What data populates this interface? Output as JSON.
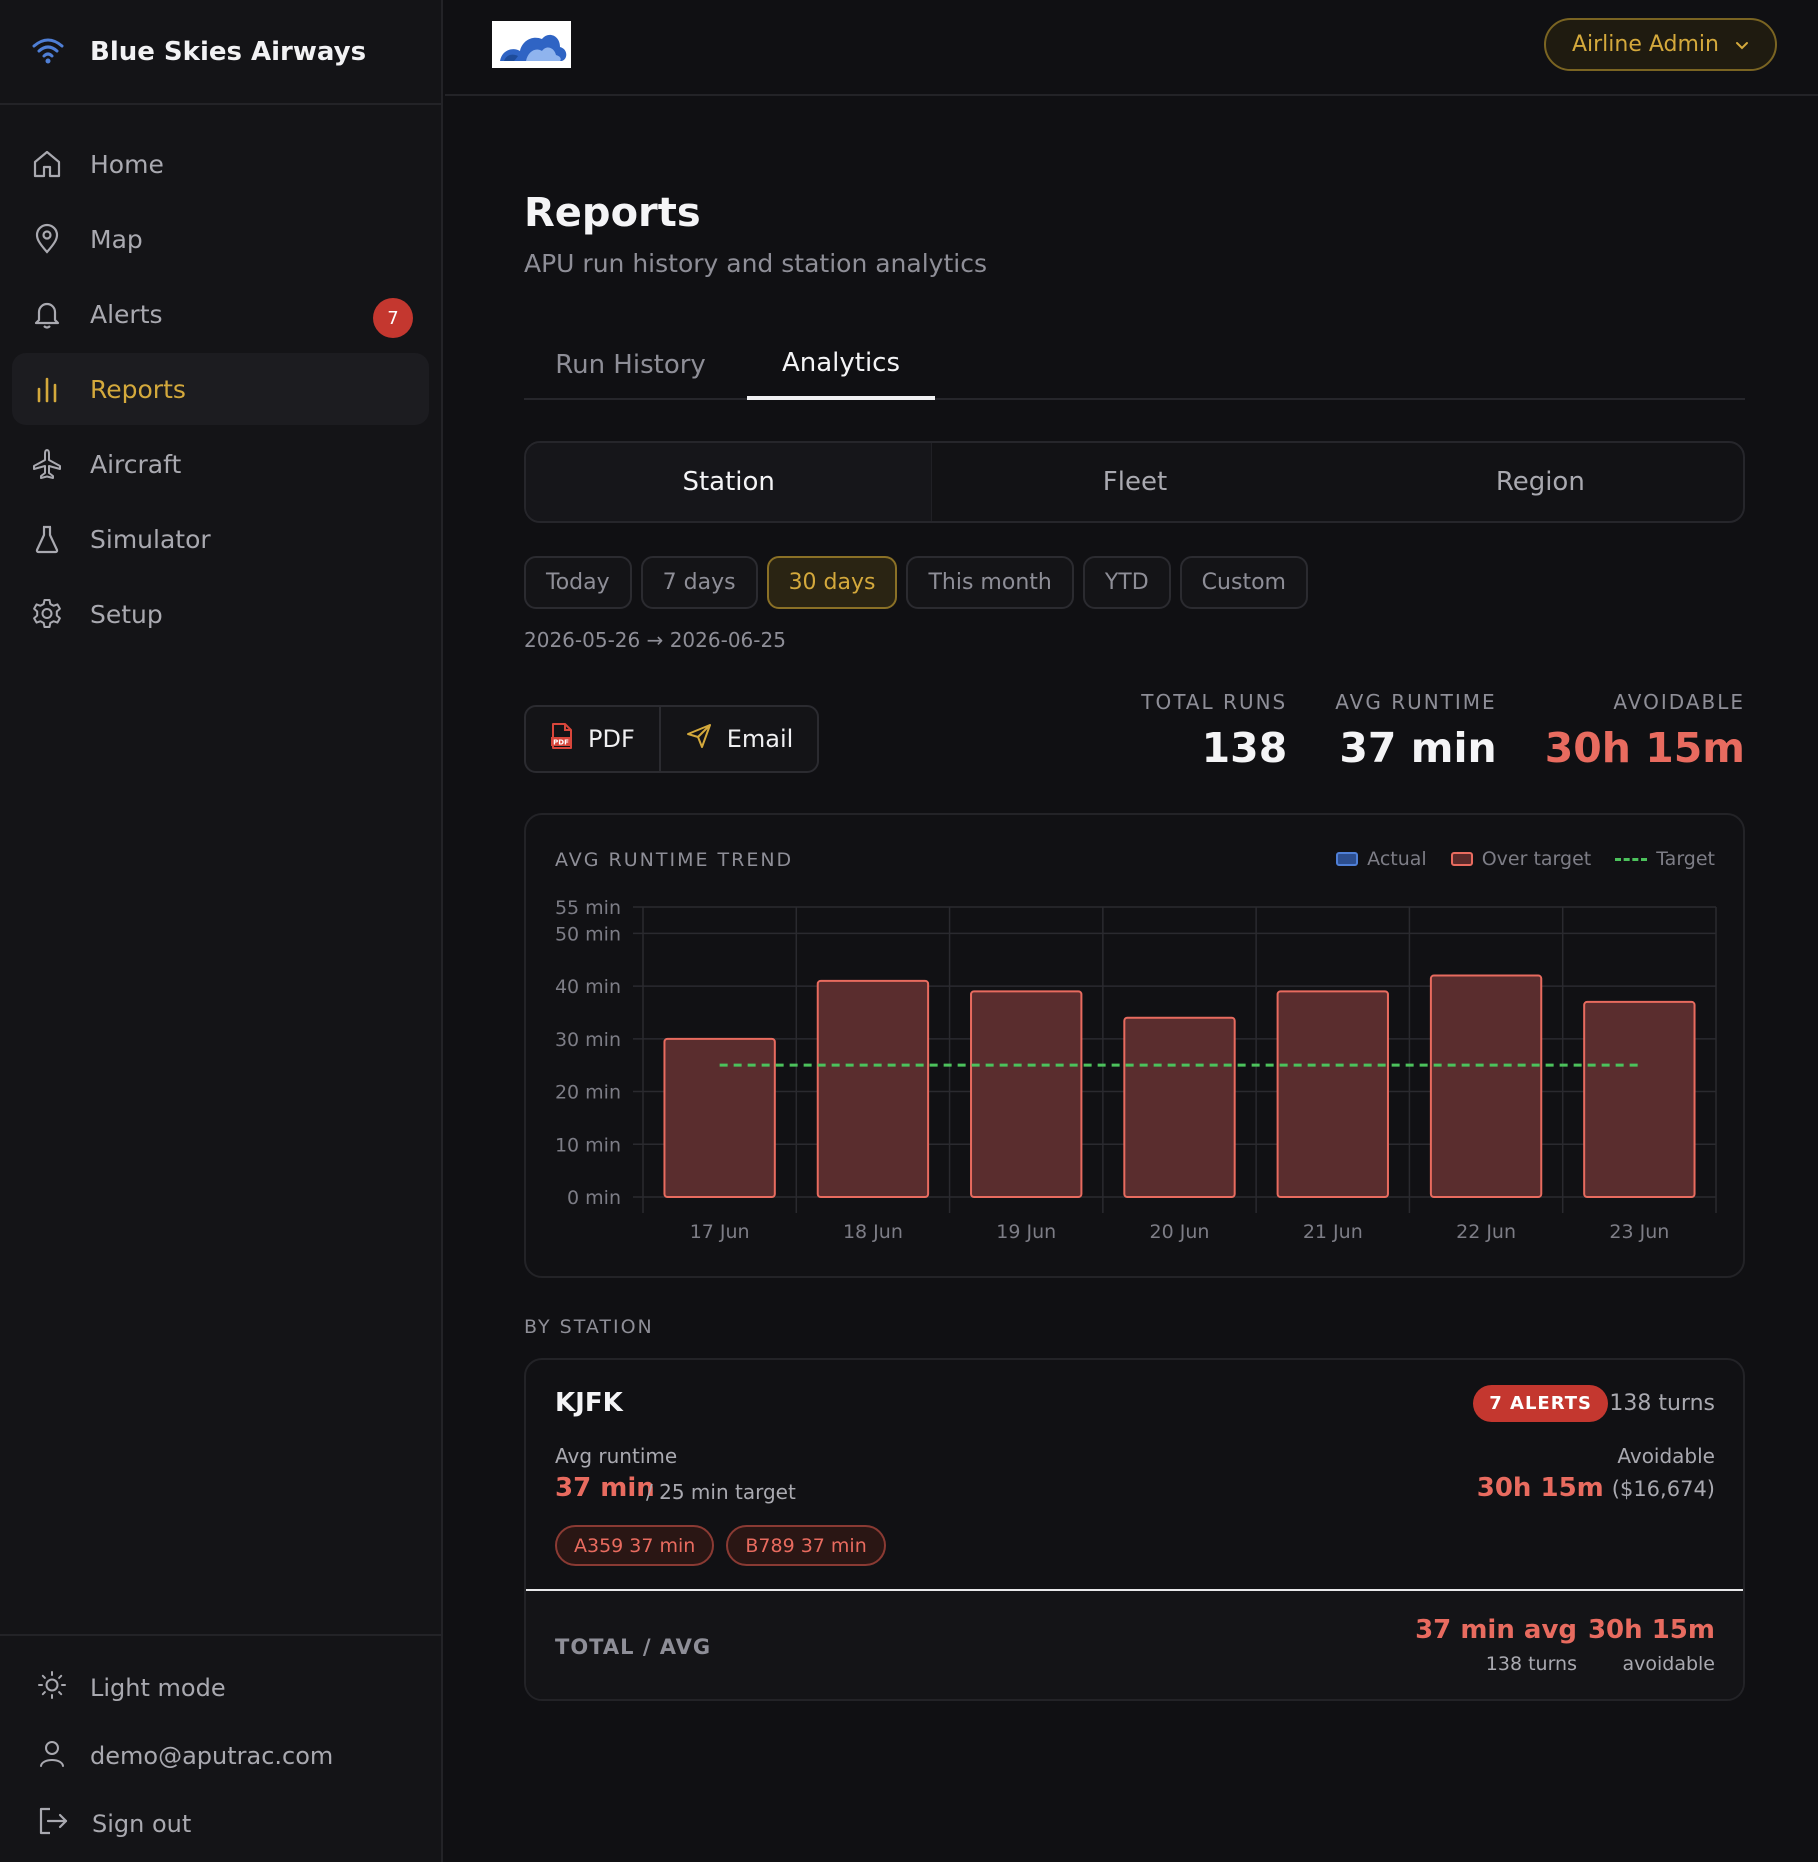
{
  "app": {
    "name": "Blue Skies Airways"
  },
  "sidebar": {
    "items": [
      {
        "label": "Home",
        "icon": "home-icon"
      },
      {
        "label": "Map",
        "icon": "map-pin-icon"
      },
      {
        "label": "Alerts",
        "icon": "bell-icon",
        "badge": "7"
      },
      {
        "label": "Reports",
        "icon": "bar-chart-icon",
        "active": true
      },
      {
        "label": "Aircraft",
        "icon": "plane-icon"
      },
      {
        "label": "Simulator",
        "icon": "flask-icon"
      },
      {
        "label": "Setup",
        "icon": "gear-icon"
      }
    ],
    "bottom": {
      "theme_label": "Light mode",
      "user_email": "demo@aputrac.com",
      "sign_out_label": "Sign out"
    }
  },
  "header": {
    "role_label": "Airline Admin"
  },
  "page": {
    "title": "Reports",
    "subtitle": "APU run history and station analytics"
  },
  "tabs": [
    {
      "label": "Run History",
      "active": false
    },
    {
      "label": "Analytics",
      "active": true
    }
  ],
  "segments": [
    {
      "label": "Station",
      "active": true
    },
    {
      "label": "Fleet",
      "active": false
    },
    {
      "label": "Region",
      "active": false
    }
  ],
  "ranges": [
    {
      "label": "Today",
      "active": false
    },
    {
      "label": "7 days",
      "active": false
    },
    {
      "label": "30 days",
      "active": true
    },
    {
      "label": "This month",
      "active": false
    },
    {
      "label": "YTD",
      "active": false
    },
    {
      "label": "Custom",
      "active": false
    }
  ],
  "date_range": "2026-05-26 → 2026-06-25",
  "export": {
    "pdf_label": "PDF",
    "email_label": "Email"
  },
  "kpis": {
    "total_runs_label": "TOTAL RUNS",
    "total_runs_value": "138",
    "avg_runtime_label": "AVG RUNTIME",
    "avg_runtime_value": "37 min",
    "avoidable_label": "AVOIDABLE",
    "avoidable_value": "30h 15m"
  },
  "chart_data": {
    "type": "bar",
    "title": "AVG RUNTIME TREND",
    "categories": [
      "17 Jun",
      "18 Jun",
      "19 Jun",
      "20 Jun",
      "21 Jun",
      "22 Jun",
      "23 Jun"
    ],
    "series": [
      {
        "name": "Actual",
        "values": [
          30,
          41,
          39,
          34,
          39,
          42,
          37
        ],
        "color": "#4f7fd6"
      },
      {
        "name": "Over target",
        "color": "#e86b5f"
      }
    ],
    "target": {
      "name": "Target",
      "value": 25,
      "color": "#4cc25c"
    },
    "y_ticks": [
      0,
      10,
      20,
      30,
      40,
      50,
      55
    ],
    "y_tick_labels": [
      "0 min",
      "10 min",
      "20 min",
      "30 min",
      "40 min",
      "50 min",
      "55 min"
    ],
    "ylim": [
      0,
      55
    ],
    "grid": true,
    "legend": "top-right"
  },
  "by_station": {
    "label": "BY STATION",
    "stations": [
      {
        "code": "KJFK",
        "alerts": "7 ALERTS",
        "turns": "138 turns",
        "avg_label": "Avg runtime",
        "avg_value": "37 min",
        "avg_target": "/ 25 min target",
        "avoidable_label": "Avoidable",
        "avoidable_value": "30h 15m",
        "avoidable_cost": "($16,674)",
        "types": [
          "A359 37 min",
          "B789 37 min"
        ]
      }
    ],
    "total": {
      "label": "TOTAL / AVG",
      "avg_value": "37 min avg",
      "avg_sub": "138 turns",
      "avoidable_value": "30h 15m",
      "avoidable_sub": "avoidable"
    }
  }
}
